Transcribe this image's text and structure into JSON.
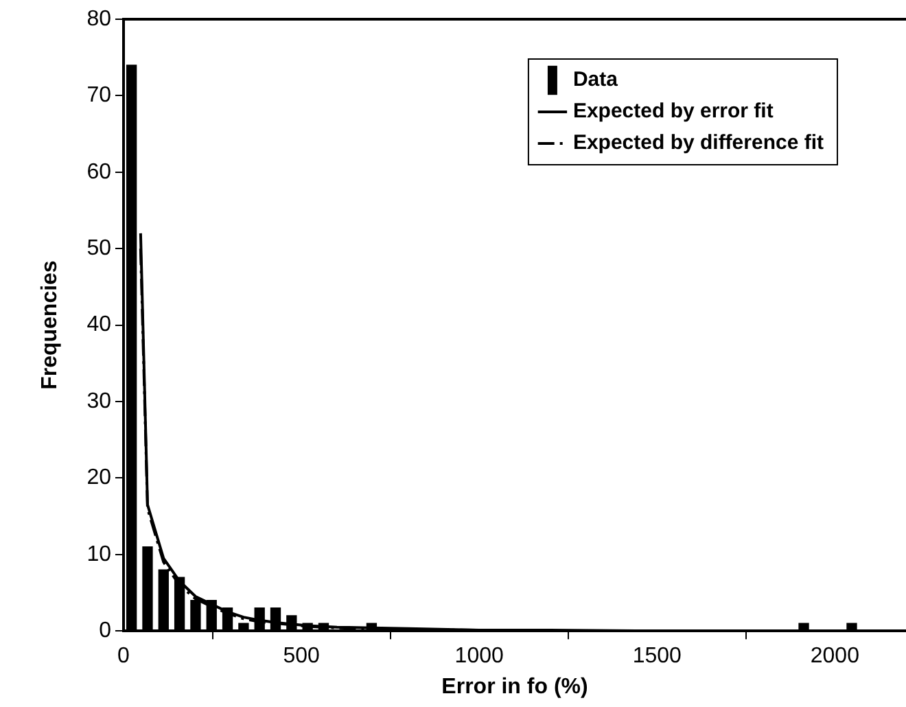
{
  "chart_data": {
    "type": "histogram",
    "xlabel": "Error in fo (%)",
    "ylabel": "Frequencies",
    "bins": [
      0,
      45,
      90,
      135,
      180,
      225,
      270,
      315,
      360,
      405,
      450,
      495,
      540,
      585,
      630,
      675,
      720,
      765,
      810,
      855,
      900,
      945,
      990,
      1035,
      1080,
      1125,
      1170,
      1215,
      1260,
      1305,
      1350,
      1395,
      1440,
      1485,
      1530,
      1575,
      1620,
      1665,
      1710,
      1755,
      1800,
      1845,
      1890,
      1935,
      1980,
      2025,
      2070,
      2115,
      2160
    ],
    "xlim": [
      0,
      2200
    ],
    "xticks": [
      0,
      500,
      1000,
      1500,
      2000
    ],
    "ylim": [
      0,
      80
    ],
    "yticks": [
      0,
      10,
      20,
      30,
      40,
      50,
      60,
      70,
      80
    ],
    "grid": false,
    "legend": "top right",
    "series": [
      {
        "name": "Data",
        "color": "#000000",
        "values": [
          74,
          11,
          8,
          7,
          4,
          4,
          3,
          1,
          3,
          3,
          2,
          1,
          1,
          0,
          0,
          1,
          0,
          0,
          0,
          0,
          0,
          0,
          0,
          0,
          0,
          0,
          0,
          0,
          0,
          0,
          0,
          0,
          0,
          0,
          0,
          0,
          0,
          0,
          0,
          0,
          0,
          0,
          1,
          0,
          0,
          1,
          0,
          0
        ]
      },
      {
        "type": "line",
        "name": "Expected by error fit",
        "color": "#000000",
        "line_style": "solid",
        "x": [
          48,
          67.5,
          112.5,
          157.5,
          202.5,
          247.5,
          292.5,
          337.5,
          382.5,
          427.5,
          472.5,
          517.5,
          600,
          700,
          800,
          1000,
          1200,
          1500,
          2000,
          2200
        ],
        "values": [
          52,
          16.5,
          9.5,
          6.5,
          4.5,
          3.5,
          2.5,
          1.8,
          1.4,
          1.1,
          0.9,
          0.7,
          0.5,
          0.4,
          0.3,
          0.1,
          0.1,
          0,
          0,
          0
        ]
      },
      {
        "type": "line",
        "name": "Expected by difference fit",
        "color": "#000000",
        "line_style": "dashed",
        "x": [
          48,
          67.5,
          112.5,
          157.5,
          202.5,
          247.5,
          292.5,
          337.5,
          382.5,
          427.5,
          472.5,
          517.5,
          600,
          700,
          800,
          1000,
          1200,
          1500,
          2000,
          2200
        ],
        "values": [
          50,
          16,
          9,
          6,
          4.2,
          3.2,
          2.3,
          1.6,
          1.2,
          1,
          0.8,
          0.6,
          0.4,
          0.3,
          0.2,
          0.1,
          0,
          0,
          0,
          0
        ]
      }
    ]
  }
}
